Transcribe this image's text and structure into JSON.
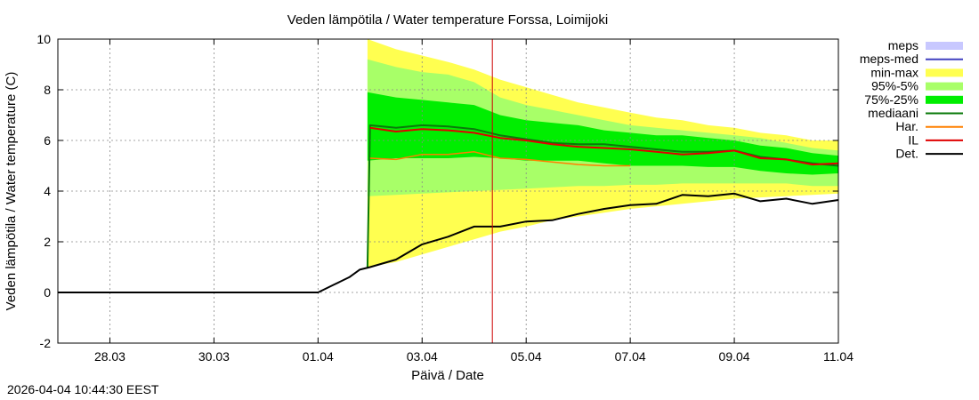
{
  "chart_data": {
    "type": "area",
    "title": "Veden lämpötila / Water temperature Forssa, Loimijoki",
    "xlabel": "Päivä / Date",
    "ylabel": "Veden lämpötila / Water temperature (C)",
    "x_unit": "days since 27.03 00:00",
    "xlim": [
      0,
      15
    ],
    "ylim": [
      -2,
      10
    ],
    "y_ticks": [
      -2,
      0,
      2,
      4,
      6,
      8,
      10
    ],
    "x_ticks": [
      {
        "x": 1,
        "label": "28.03"
      },
      {
        "x": 3,
        "label": "30.03"
      },
      {
        "x": 5,
        "label": "01.04"
      },
      {
        "x": 7,
        "label": "03.04"
      },
      {
        "x": 9,
        "label": "05.04"
      },
      {
        "x": 11,
        "label": "07.04"
      },
      {
        "x": 13,
        "label": "09.04"
      },
      {
        "x": 15,
        "label": "11.04"
      }
    ],
    "grid": true,
    "legend_position": "right",
    "current_time_x": 8.35,
    "current_time_color": "#cc0000",
    "legend": [
      {
        "label": "meps",
        "color": "#c8c8ff",
        "kind": "box"
      },
      {
        "label": "meps-med",
        "color": "#4040c0",
        "kind": "line"
      },
      {
        "label": "min-max",
        "color": "#ffff50",
        "kind": "box"
      },
      {
        "label": "95%-5%",
        "color": "#a8ff68",
        "kind": "box"
      },
      {
        "label": "75%-25%",
        "color": "#00ee00",
        "kind": "box"
      },
      {
        "label": "mediaani",
        "color": "#0a7a0a",
        "kind": "line"
      },
      {
        "label": "Har.",
        "color": "#ff8000",
        "kind": "line"
      },
      {
        "label": "IL",
        "color": "#e00000",
        "kind": "line"
      },
      {
        "label": "Det.",
        "color": "#000000",
        "kind": "line"
      }
    ],
    "bands": [
      {
        "name": "min-max",
        "color": "#ffff50",
        "x": [
          5.95,
          6.5,
          7.0,
          7.5,
          8.0,
          8.5,
          9.0,
          9.5,
          10.0,
          10.5,
          11.0,
          11.5,
          12.0,
          12.5,
          13.0,
          13.5,
          14.0,
          14.5,
          15.0
        ],
        "upper": [
          10.0,
          9.6,
          9.35,
          9.1,
          8.8,
          8.4,
          8.1,
          7.8,
          7.5,
          7.3,
          7.1,
          6.9,
          6.8,
          6.6,
          6.5,
          6.3,
          6.2,
          6.0,
          6.0
        ],
        "lower": [
          1.0,
          1.2,
          1.5,
          1.8,
          2.1,
          2.4,
          2.6,
          2.85,
          3.0,
          3.15,
          3.3,
          3.4,
          3.5,
          3.6,
          3.7,
          3.75,
          3.8,
          3.85,
          3.9
        ]
      },
      {
        "name": "95%-5%",
        "color": "#a8ff68",
        "x": [
          5.95,
          6.5,
          7.0,
          7.5,
          8.0,
          8.5,
          9.0,
          9.5,
          10.0,
          10.5,
          11.0,
          11.5,
          12.0,
          12.5,
          13.0,
          13.5,
          14.0,
          14.5,
          15.0
        ],
        "upper": [
          9.2,
          8.9,
          8.7,
          8.6,
          8.3,
          7.7,
          7.4,
          7.2,
          7.0,
          6.8,
          6.6,
          6.5,
          6.4,
          6.3,
          6.2,
          6.1,
          5.9,
          5.7,
          5.6
        ],
        "lower": [
          3.8,
          3.85,
          3.9,
          3.95,
          4.0,
          4.05,
          4.1,
          4.15,
          4.2,
          4.2,
          4.25,
          4.25,
          4.3,
          4.3,
          4.3,
          4.3,
          4.3,
          4.2,
          4.2
        ]
      },
      {
        "name": "75%-25%",
        "color": "#00ee00",
        "x": [
          5.95,
          6.5,
          7.0,
          7.5,
          8.0,
          8.5,
          9.0,
          9.5,
          10.0,
          10.5,
          11.0,
          11.5,
          12.0,
          12.5,
          13.0,
          13.5,
          14.0,
          14.5,
          15.0
        ],
        "upper": [
          7.9,
          7.7,
          7.6,
          7.5,
          7.4,
          7.0,
          6.8,
          6.7,
          6.6,
          6.4,
          6.3,
          6.2,
          6.2,
          6.1,
          6.0,
          5.8,
          5.7,
          5.5,
          5.4
        ],
        "lower": [
          5.2,
          5.3,
          5.3,
          5.3,
          5.35,
          5.3,
          5.2,
          5.2,
          5.2,
          5.1,
          5.0,
          5.0,
          5.0,
          4.95,
          4.95,
          4.8,
          4.7,
          4.65,
          4.7
        ]
      }
    ],
    "series": [
      {
        "name": "mediaani",
        "color": "#0a7a0a",
        "width": 2,
        "x": [
          5.95,
          6.0,
          6.5,
          7.0,
          7.5,
          8.0,
          8.5,
          9.0,
          9.5,
          10.0,
          10.5,
          11.0,
          11.5,
          12.0,
          12.5,
          13.0,
          13.5,
          14.0,
          14.5,
          15.0
        ],
        "y": [
          1.0,
          6.6,
          6.5,
          6.6,
          6.55,
          6.45,
          6.2,
          6.05,
          5.9,
          5.85,
          5.85,
          5.75,
          5.65,
          5.55,
          5.55,
          5.6,
          5.35,
          5.25,
          5.1,
          5.0
        ]
      },
      {
        "name": "IL",
        "color": "#e00000",
        "width": 2,
        "x": [
          6.0,
          6.5,
          7.0,
          7.5,
          8.0,
          8.5,
          9.0,
          9.5,
          10.0,
          10.5,
          11.0,
          11.5,
          12.0,
          12.5,
          13.0,
          13.5,
          14.0,
          14.5,
          15.0
        ],
        "y": [
          6.5,
          6.35,
          6.45,
          6.4,
          6.3,
          6.1,
          6.0,
          5.85,
          5.75,
          5.7,
          5.65,
          5.55,
          5.45,
          5.5,
          5.6,
          5.3,
          5.25,
          5.05,
          5.1
        ]
      },
      {
        "name": "Har.",
        "color": "#ff8000",
        "width": 1.5,
        "x": [
          6.0,
          6.5,
          7.0,
          7.5,
          8.0,
          8.5,
          9.0,
          9.5,
          10.0,
          10.5,
          11.0
        ],
        "y": [
          5.3,
          5.25,
          5.45,
          5.45,
          5.55,
          5.3,
          5.25,
          5.15,
          5.05,
          5.0,
          5.0
        ]
      },
      {
        "name": "Det.",
        "color": "#000000",
        "width": 2,
        "x": [
          0.0,
          1.0,
          2.0,
          3.0,
          4.0,
          5.0,
          5.3,
          5.6,
          5.8,
          6.0,
          6.5,
          7.0,
          7.5,
          8.0,
          8.5,
          9.0,
          9.5,
          10.0,
          10.5,
          11.0,
          11.5,
          12.0,
          12.5,
          13.0,
          13.5,
          14.0,
          14.5,
          15.0
        ],
        "y": [
          0.0,
          0.0,
          0.0,
          0.0,
          0.0,
          0.0,
          0.3,
          0.6,
          0.9,
          1.0,
          1.3,
          1.9,
          2.2,
          2.6,
          2.6,
          2.8,
          2.85,
          3.1,
          3.3,
          3.45,
          3.5,
          3.85,
          3.8,
          3.9,
          3.6,
          3.7,
          3.5,
          3.65
        ]
      }
    ]
  },
  "footer": {
    "timestamp": "2026-04-04 10:44:30 EEST"
  }
}
